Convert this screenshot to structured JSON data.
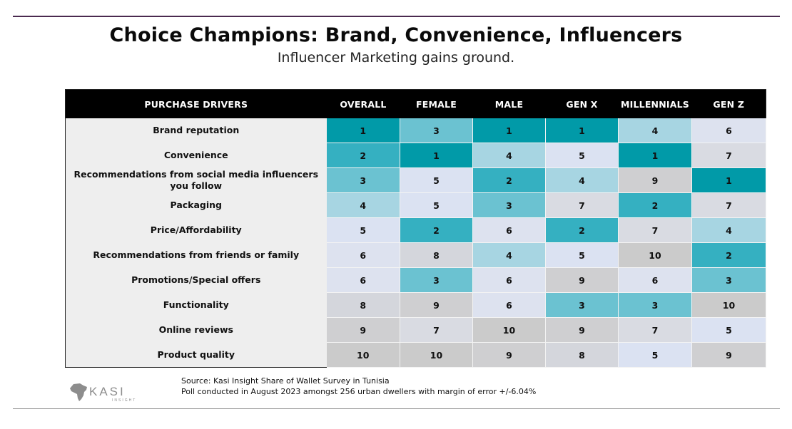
{
  "title": "Choice Champions: Brand, Convenience, Influencers",
  "subtitle": "Influencer Marketing gains ground.",
  "chart_data": {
    "type": "table",
    "columns": [
      "PURCHASE DRIVERS",
      "OVERALL",
      "FEMALE",
      "MALE",
      "GEN X",
      "MILLENNIALS",
      "GEN Z"
    ],
    "rows": [
      {
        "driver": "Brand reputation",
        "values": [
          1,
          3,
          1,
          1,
          4,
          6
        ]
      },
      {
        "driver": "Convenience",
        "values": [
          2,
          1,
          4,
          5,
          1,
          7
        ]
      },
      {
        "driver": "Recommendations from social media influencers you follow",
        "values": [
          3,
          5,
          2,
          4,
          9,
          1
        ]
      },
      {
        "driver": "Packaging",
        "values": [
          4,
          5,
          3,
          7,
          2,
          7
        ]
      },
      {
        "driver": "Price/Affordability",
        "values": [
          5,
          2,
          6,
          2,
          7,
          4
        ]
      },
      {
        "driver": "Recommendations from friends or family",
        "values": [
          6,
          8,
          4,
          5,
          10,
          2
        ]
      },
      {
        "driver": "Promotions/Special offers",
        "values": [
          6,
          3,
          6,
          9,
          6,
          3
        ]
      },
      {
        "driver": "Functionality",
        "values": [
          8,
          9,
          6,
          3,
          3,
          10
        ]
      },
      {
        "driver": "Online reviews",
        "values": [
          9,
          7,
          10,
          9,
          7,
          5
        ]
      },
      {
        "driver": "Product quality",
        "values": [
          10,
          10,
          9,
          8,
          5,
          9
        ]
      }
    ],
    "rank_colors": {
      "1": "#019aa8",
      "2": "#35b0c1",
      "3": "#6bc2d1",
      "4": "#a7d5e2",
      "5": "#dbe2f2",
      "6": "#dde2ef",
      "7": "#d9dbe2",
      "8": "#d4d6dc",
      "9": "#cfcfd1",
      "10": "#cbcbcb"
    }
  },
  "footer": {
    "logo_text": "KASI",
    "logo_subtext": "INSIGHT",
    "source_line1": "Source: Kasi Insight Share of Wallet Survey in Tunisia",
    "source_line2": "Poll conducted in August 2023 amongst 256 urban dwellers with margin of error +/-6.04%"
  }
}
